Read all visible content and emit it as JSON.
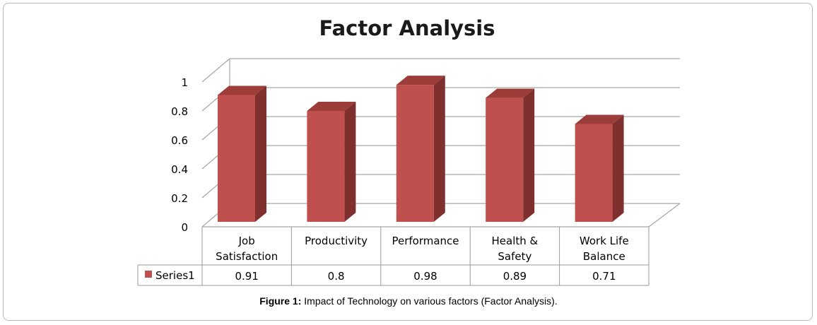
{
  "chart_data": {
    "type": "bar",
    "title": "Factor Analysis",
    "categories": [
      [
        "Job",
        "Satisfaction"
      ],
      [
        "Productivity"
      ],
      [
        "Performance"
      ],
      [
        "Health &",
        "Safety"
      ],
      [
        "Work Life",
        "Balance"
      ]
    ],
    "series": [
      {
        "name": "Series1",
        "values": [
          0.91,
          0.8,
          0.98,
          0.89,
          0.71
        ],
        "color": "#c0504d"
      }
    ],
    "value_labels": [
      "0.91",
      "0.8",
      "0.98",
      "0.89",
      "0.71"
    ],
    "yticks": [
      "0",
      "0.2",
      "0.4",
      "0.6",
      "0.8",
      "1"
    ],
    "ylim": [
      0,
      1
    ],
    "grid": true,
    "legend": "data-table-left",
    "colors": {
      "bar_front": "#c0504d",
      "bar_side": "#7f2f2d",
      "bar_top": "#9c3d3a"
    }
  },
  "caption": {
    "label": "Figure 1:",
    "text": " Impact of Technology on various factors (Factor Analysis)."
  }
}
